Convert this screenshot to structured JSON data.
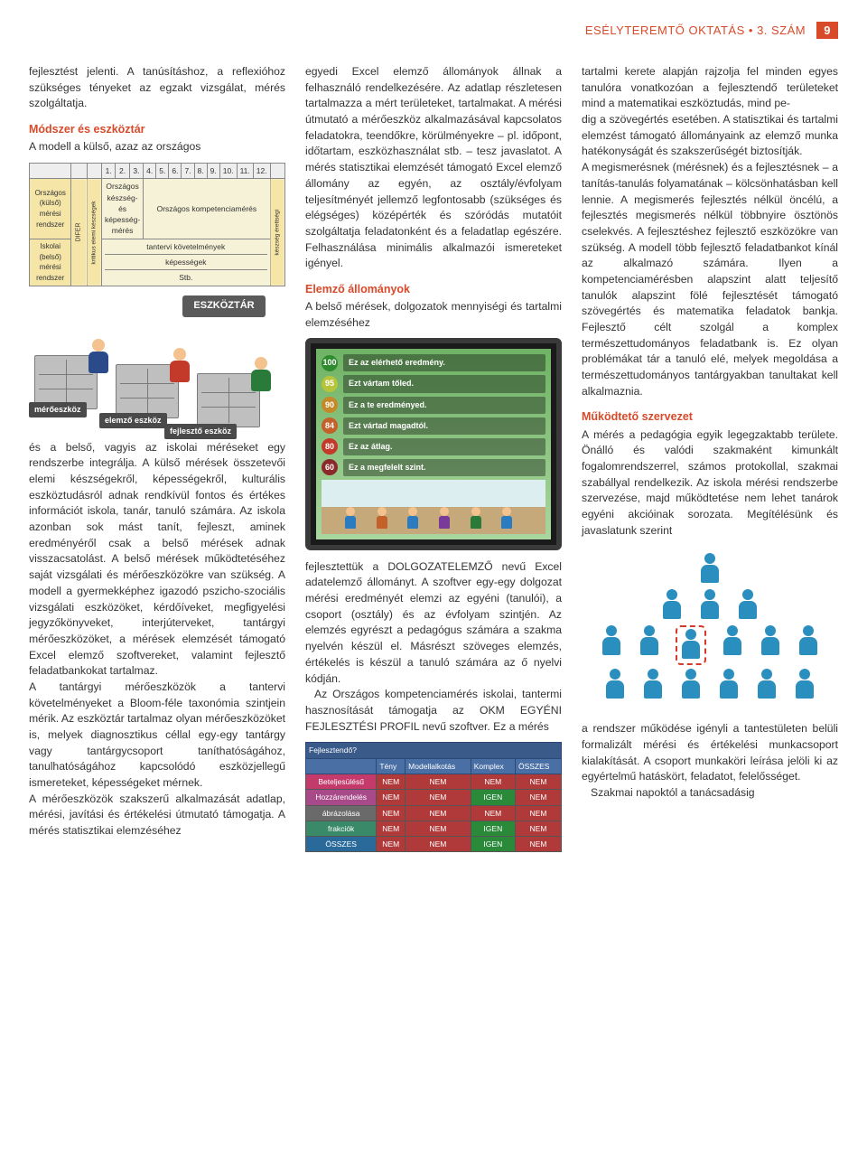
{
  "header": {
    "journal": "ESÉLYTEREMTŐ OKTATÁS",
    "separator": "•",
    "issue": "3. SZÁM",
    "page": "9"
  },
  "colors": {
    "accent": "#d84a2a",
    "text": "#333333",
    "diagram_bg": "#f6f2d7",
    "diagram_yellow": "#f5e6a8",
    "badge_bg": "#5a5a5a",
    "screen_border": "#3a3a3a",
    "screen_grad_top": "#6fb265",
    "screen_grad_bottom": "#a9d79f",
    "table_header_bg": "#4a6fa5",
    "person_blue": "#2a8fbf",
    "highlight_red": "#d43a2a"
  },
  "body": {
    "p1": "fejlesztést jelenti. A tanúsításhoz, a reflexióhoz szükséges tényeket az egzakt vizsgálat, mérés szolgáltatja.",
    "h_modszer": "Módszer és eszköztár",
    "p2": "A modell a külső, azaz az országos",
    "p3": "és a belső, vagyis az iskolai méréseket egy rendszerbe integrálja. A külső mérések összetevői elemi készségekről, képességekről, kulturális eszköztudásról adnak rendkívül fontos és értékes információt iskola, tanár, tanuló számára. Az iskola azonban sok mást tanít, fejleszt, aminek eredményéről csak a belső mérések adnak visszacsatolást. A belső mérések működtetéséhez saját vizsgálati és mérőeszközökre van szükség. A modell a gyermekképhez igazodó pszicho-szociális vizsgálati eszközöket, kérdőíveket, megfigyelési jegyzőkönyveket, interjúterveket, tantárgyi mérőeszközöket, a mérések elemzését támogató Excel elemző szoftvereket, valamint fejlesztő feladatbankokat tartalmaz.",
    "p4": "A tantárgyi mérőeszközök a tantervi követelményeket a Bloom-féle taxonómia szintjein mérik. Az eszköztár tartalmaz olyan mérőeszközöket is, melyek diagnosztikus céllal egy-egy tantárgy vagy tantárgycsoport taníthatóságához, tanulhatóságához kapcsolódó eszközjellegű ismereteket, képességeket mérnek.",
    "p5": "A mérőeszközök szakszerű alkalmazását adatlap, mérési, javítási és értékelési útmutató támogatja. A mérés statisztikai elemzéséhez",
    "p6": "egyedi Excel elemző állományok állnak a felhasználó rendelkezésére. Az adatlap részletesen tartalmazza a mért területeket, tartalmakat. A mérési útmutató a mérőeszköz alkalmazásával kapcsolatos feladatokra, teendőkre, körülményekre – pl. időpont, időtartam, eszközhasználat stb. – tesz javaslatot. A mérés statisztikai elemzését támogató Excel elemző állomány az egyén, az osztály/évfolyam teljesítményét jellemző legfontosabb (szükséges és elégséges) középérték és szóródás mutatóit szolgáltatja feladatonként és a feladatlap egészére. Felhasználása minimális alkalmazói ismereteket igényel.",
    "h_elemzo": "Elemző állományok",
    "p7": "A belső mérések, dolgozatok mennyiségi és tartalmi elemzéséhez",
    "p8": "fejlesztettük a DOLGOZATELEMZŐ nevű Excel adatelemző állományt. A szoftver egy-egy dolgozat mérési eredményét elemzi az egyéni (tanulói), a csoport (osztály) és az évfolyam szintjén. Az elemzés egyrészt a pedagógus számára a szakma nyelvén készül el. Másrészt szöveges elemzés, értékelés is készül a tanuló számára az ő nyelvi kódján.",
    "p9": "Az Országos kompetenciamérés iskolai, tantermi hasznosítását támogatja az OKM EGYÉNI FEJLESZTÉSI PROFIL nevű szoftver. Ez a mérés",
    "p10": "tartalmi kerete alapján rajzolja fel minden egyes tanulóra vonatkozóan a fejlesztendő területeket mind a matematikai eszköztudás, mind pe-",
    "p11": "dig a szövegértés esetében. A statisztikai és tartalmi elemzést támogató állományaink az elemző munka hatékonyságát és szakszerűségét biztosítják.",
    "p12": "A megismerésnek (mérésnek) és a fejlesztésnek – a tanítás-tanulás folyamatának – kölcsönhatásban kell lennie. A megismerés fejlesztés nélkül öncélú, a fejlesztés megismerés nélkül többnyire ösztönös cselekvés. A fejlesztéshez fejlesztő eszközökre van szükség. A modell több fejlesztő feladatbankot kínál az alkalmazó számára. Ilyen a kompetenciamérésben alapszint alatt teljesítő tanulók alapszint fölé fejlesztését támogató szövegértés és matematika feladatok bankja. Fejlesztő célt szolgál a komplex természettudományos feladatbank is. Ez olyan problémákat tár a tanuló elé, melyek megoldása a természettudományos tantárgyakban tanultakat kell alkalmaznia.",
    "h_mukodteto": "Működtető szervezet",
    "p13": "A mérés a pedagógia egyik legegzaktabb területe. Önálló és valódi szakmaként kimunkált fogalomrendszerrel, számos protokollal, szakmai szabállyal rendelkezik. Az iskola mérési rendszerbe szervezése, majd működtetése nem lehet tanárok egyéni akcióinak sorozata. Megítélésünk és javaslatunk szerint",
    "p14": "a rendszer működése igényli a tantestületen belüli formalizált mérési és értékelési munkacsoport kialakítását. A csoport munkaköri leírása jelöli ki az egyértelmű hatáskört, feladatot, felelősséget.",
    "p15": "Szakmai napoktól a tanácsadásig"
  },
  "fig1": {
    "col_nums": [
      "1.",
      "2.",
      "3.",
      "4.",
      "5.",
      "6.",
      "7.",
      "8.",
      "9.",
      "10.",
      "11.",
      "12."
    ],
    "row1_label": "Országos (külső) mérési rendszer",
    "row2_label": "Iskolai (belső) mérési rendszer",
    "difer": "DIFER",
    "side_left": "kritikus elemi készségek",
    "side_right": "készség érettségi",
    "cell_a": "Országos készség- és képesség-mérés",
    "cell_b": "Országos kompetenciamérés",
    "cell_c": "tantervi követelmények",
    "cell_d": "képességek",
    "cell_e": "Stb.",
    "badge": "ESZKÖZTÁR",
    "label_mero": "mérőeszköz",
    "label_elemzo": "elemző eszköz",
    "label_fejleszto": "fejlesztő eszköz"
  },
  "fig2": {
    "rows": [
      {
        "n": "100",
        "color": "#2e8b2e",
        "text": "Ez az elérhető eredmény."
      },
      {
        "n": "95",
        "color": "#b5c43a",
        "text": "Ezt vártam tőled."
      },
      {
        "n": "90",
        "color": "#c48a2a",
        "text": "Ez a te eredményed."
      },
      {
        "n": "84",
        "color": "#c4602a",
        "text": "Ezt vártad magadtól."
      },
      {
        "n": "80",
        "color": "#c43a2a",
        "text": "Ez az átlag."
      },
      {
        "n": "60",
        "color": "#8a2a2a",
        "text": "Ez a megfelelt szint."
      }
    ]
  },
  "fig3": {
    "title_row": "Fejlesztendő?",
    "headers": [
      "Tény",
      "Modellalkotás",
      "Komplex",
      "ÖSSZES"
    ],
    "rows": [
      {
        "label": "Beteljesülésű",
        "cells": [
          "NEM",
          "NEM",
          "NEM",
          "NEM"
        ],
        "bg": "#c43a6a"
      },
      {
        "label": "Hozzárendelés",
        "cells": [
          "NEM",
          "NEM",
          "IGEN",
          "NEM"
        ],
        "bg": "#a84a8a"
      },
      {
        "label": "ábrázolása",
        "cells": [
          "NEM",
          "NEM",
          "NEM",
          "NEM"
        ],
        "bg": "#6a6a6a"
      },
      {
        "label": "frakciók",
        "cells": [
          "NEM",
          "NEM",
          "IGEN",
          "NEM"
        ],
        "bg": "#3a8a6a"
      },
      {
        "label": "ÖSSZES",
        "cells": [
          "NEM",
          "NEM",
          "IGEN",
          "NEM"
        ],
        "bg": "#2a6a9a"
      }
    ],
    "green": "#2a8a3a",
    "red": "#b03a3a"
  },
  "fig4": {
    "levels": [
      1,
      3,
      6,
      6
    ],
    "highlight_level": 2,
    "highlight_index": 2
  }
}
